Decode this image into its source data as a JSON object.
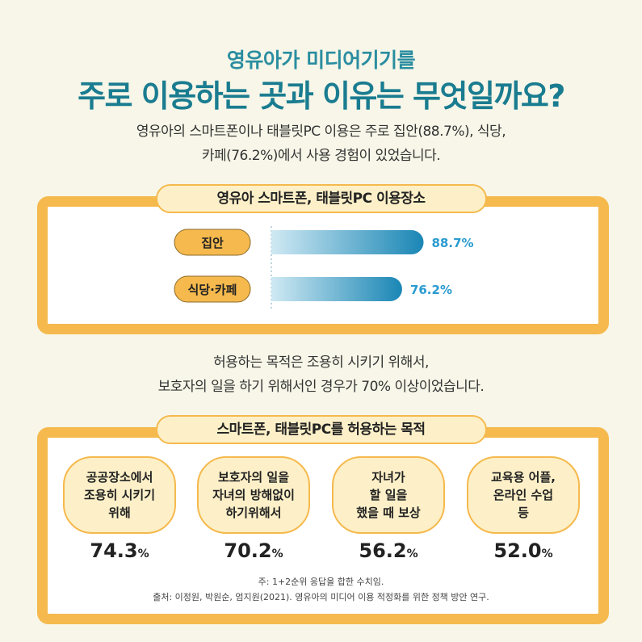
{
  "header": {
    "subtitle": "영유아가 미디어기기를",
    "title": "주로 이용하는 곳과 이유는 무엇일까요?"
  },
  "intro": {
    "line1": "영유아의 스마트폰이나 태블릿PC 이용은 주로 집안(88.7%), 식당,",
    "line2": "카페(76.2%)에서 사용 경험이 있었습니다."
  },
  "purpose_intro": {
    "line1": "허용하는 목적은 조용히 시키기 위해서,",
    "line2": "보호자의 일을 하기 위해서인 경우가 70% 이상이었습니다."
  },
  "colors": {
    "accent": "#f5b94d",
    "bar_start": "#a8d8ea",
    "bar_end": "#1a86b5",
    "value_text": "#2a9bd0"
  },
  "chart_data": [
    {
      "type": "bar",
      "orientation": "horizontal",
      "title": "영유아 스마트폰, 태블릿PC 이용장소",
      "categories": [
        "집안",
        "식당·카페"
      ],
      "values": [
        88.7,
        76.2
      ],
      "value_labels": [
        "88.7%",
        "76.2%"
      ],
      "xlim": [
        0,
        100
      ]
    },
    {
      "type": "table",
      "title": "스마트폰, 태블릿PC를 허용하는 목적",
      "categories": [
        "공공장소에서\n조용히 시키기\n위해",
        "보호자의 일을\n자녀의 방해없이\n하기위해서",
        "자녀가\n할 일을\n했을 때 보상",
        "교육용 어플,\n온라인 수업\n등"
      ],
      "values": [
        74.3,
        70.2,
        56.2,
        52.0
      ],
      "value_labels": [
        "74.3",
        "70.2",
        "56.2",
        "52.0"
      ],
      "unit": "%"
    }
  ],
  "notes": {
    "note1": "주: 1+2순위 응답을 합한 수치임.",
    "note2": "출처: 이정원, 박원순, 엄지원(2021). 영유아의 미디어 이용 적정화를 위한 정책 방안 연구."
  }
}
